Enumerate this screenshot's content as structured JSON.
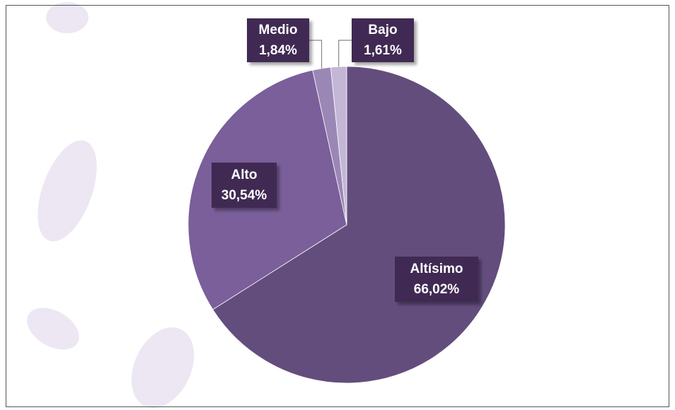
{
  "chart_data": {
    "type": "pie",
    "categories": [
      "Altísimo",
      "Alto",
      "Medio",
      "Bajo"
    ],
    "values": [
      66.02,
      30.54,
      1.84,
      1.61
    ],
    "value_labels": [
      "66,02%",
      "30,54%",
      "1,84%",
      "1,61%"
    ],
    "colors": [
      "#634d7d",
      "#7a5f9a",
      "#9b87b5",
      "#c4b7d6"
    ]
  }
}
